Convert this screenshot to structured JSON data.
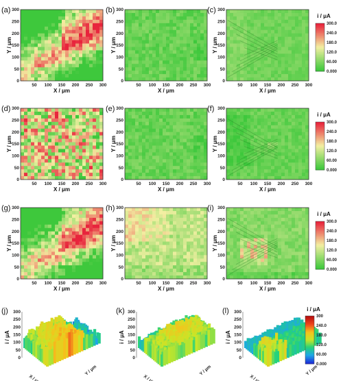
{
  "chart_data": [
    {
      "panel": "(a)",
      "type": "heatmap",
      "xlabel": "X / μm",
      "ylabel": "Y / μm",
      "xticks": [
        "50",
        "100",
        "150",
        "200",
        "250",
        "300"
      ],
      "yticks": [
        "0",
        "50",
        "100",
        "150",
        "200",
        "250",
        "300"
      ],
      "x_range": [
        0,
        300
      ],
      "y_range": [
        0,
        300
      ],
      "unit": "i / μA",
      "level": "high",
      "pattern": "diagonal-band"
    },
    {
      "panel": "(b)",
      "type": "heatmap",
      "xlabel": "X / μm",
      "ylabel": "Y / μm",
      "xticks": [
        "50",
        "100",
        "150",
        "200",
        "250",
        "300"
      ],
      "yticks": [
        "0",
        "50",
        "100",
        "150",
        "200",
        "250",
        "300"
      ],
      "x_range": [
        0,
        300
      ],
      "y_range": [
        0,
        300
      ],
      "unit": "i / μA",
      "level": "low",
      "pattern": "uniform"
    },
    {
      "panel": "(c)",
      "type": "heatmap",
      "xlabel": "X / μm",
      "ylabel": "Y / μm",
      "xticks": [
        "50",
        "100",
        "150",
        "200",
        "250",
        "300"
      ],
      "yticks": [
        "0",
        "50",
        "100",
        "150",
        "200",
        "250",
        "300"
      ],
      "x_range": [
        0,
        300
      ],
      "y_range": [
        0,
        300
      ],
      "unit": "i / μA",
      "level": "low",
      "pattern": "scratch",
      "colorbar": {
        "title": "i / μA",
        "ticks": [
          "300.0",
          "240.0",
          "180.0",
          "120.0",
          "60.00",
          "0.000"
        ],
        "range": [
          0,
          300
        ]
      }
    },
    {
      "panel": "(d)",
      "type": "heatmap",
      "xlabel": "X / μm",
      "ylabel": "Y / μm",
      "xticks": [
        "50",
        "100",
        "150",
        "200",
        "250",
        "300"
      ],
      "yticks": [
        "0",
        "50",
        "100",
        "150",
        "200",
        "250",
        "300"
      ],
      "x_range": [
        0,
        300
      ],
      "y_range": [
        0,
        300
      ],
      "unit": "i / μA",
      "level": "high",
      "pattern": "spotted"
    },
    {
      "panel": "(e)",
      "type": "heatmap",
      "xlabel": "X / μm",
      "ylabel": "Y / μm",
      "xticks": [
        "50",
        "100",
        "150",
        "200",
        "250",
        "300"
      ],
      "yticks": [
        "0",
        "50",
        "100",
        "150",
        "200",
        "250",
        "300"
      ],
      "x_range": [
        0,
        300
      ],
      "y_range": [
        0,
        300
      ],
      "unit": "i / μA",
      "level": "low",
      "pattern": "uniform"
    },
    {
      "panel": "(f)",
      "type": "heatmap",
      "xlabel": "X / μm",
      "ylabel": "Y / μm",
      "xticks": [
        "50",
        "100",
        "150",
        "200",
        "250",
        "300"
      ],
      "yticks": [
        "0",
        "50",
        "100",
        "150",
        "200",
        "250",
        "300"
      ],
      "x_range": [
        0,
        300
      ],
      "y_range": [
        0,
        300
      ],
      "unit": "i / μA",
      "level": "low",
      "pattern": "scratch-dark",
      "colorbar": {
        "title": "i / μA",
        "ticks": [
          "300.0",
          "240.0",
          "180.0",
          "120.0",
          "60.00",
          "0.000"
        ],
        "range": [
          0,
          300
        ]
      }
    },
    {
      "panel": "(g)",
      "type": "heatmap",
      "xlabel": "X / μm",
      "ylabel": "Y / μm",
      "xticks": [
        "50",
        "100",
        "150",
        "200",
        "250",
        "300"
      ],
      "yticks": [
        "0",
        "50",
        "100",
        "150",
        "200",
        "250",
        "300"
      ],
      "x_range": [
        0,
        300
      ],
      "y_range": [
        0,
        300
      ],
      "unit": "i / μA",
      "level": "high",
      "pattern": "diagonal-band"
    },
    {
      "panel": "(h)",
      "type": "heatmap",
      "xlabel": "X / μm",
      "ylabel": "Y / μm",
      "xticks": [
        "50",
        "100",
        "150",
        "200",
        "250",
        "300"
      ],
      "yticks": [
        "0",
        "50",
        "100",
        "150",
        "200",
        "250",
        "300"
      ],
      "x_range": [
        0,
        300
      ],
      "y_range": [
        0,
        300
      ],
      "unit": "i / μA",
      "level": "medium",
      "pattern": "top-left-patch"
    },
    {
      "panel": "(i)",
      "type": "heatmap",
      "xlabel": "X / μm",
      "ylabel": "Y / μm",
      "xticks": [
        "50",
        "100",
        "150",
        "200",
        "250",
        "300"
      ],
      "yticks": [
        "0",
        "50",
        "100",
        "150",
        "200",
        "250",
        "300"
      ],
      "x_range": [
        0,
        300
      ],
      "y_range": [
        0,
        300
      ],
      "unit": "i / μA",
      "level": "low-medium",
      "pattern": "scratch-spots",
      "colorbar": {
        "title": "i / μA",
        "ticks": [
          "300.0",
          "240.0",
          "180.0",
          "120.0",
          "60.00",
          "0.000"
        ],
        "range": [
          0,
          300
        ]
      }
    },
    {
      "panel": "(j)",
      "type": "surface3d",
      "zlabel": "i / μA",
      "zticks": [
        "0",
        "50",
        "100",
        "150",
        "200",
        "250",
        "300"
      ],
      "xlabel": "X / μm",
      "ylabel": "Y / μm",
      "z_range": [
        0,
        300
      ],
      "level": "high"
    },
    {
      "panel": "(k)",
      "type": "surface3d",
      "zlabel": "i / μA",
      "zticks": [
        "0",
        "50",
        "100",
        "150",
        "200",
        "250",
        "300"
      ],
      "xlabel": "X / μm",
      "ylabel": "Y / μm",
      "z_range": [
        0,
        300
      ],
      "level": "medium"
    },
    {
      "panel": "(l)",
      "type": "surface3d",
      "zlabel": "i / μA",
      "zticks": [
        "0",
        "50",
        "100",
        "150",
        "200",
        "250",
        "300"
      ],
      "xlabel": "X / μm",
      "ylabel": "Y / μm",
      "z_range": [
        0,
        300
      ],
      "level": "low-medium",
      "colorbar": {
        "title": "i / μA",
        "ticks": [
          "300",
          "240.0",
          "180.0",
          "120.0",
          "60.00",
          "0.000"
        ],
        "range": [
          0,
          300
        ]
      }
    }
  ],
  "colors": {
    "green": "#3ec83c",
    "yellow": "#f3efa2",
    "red": "#e8243c",
    "rainbow": [
      "#1c2fd8",
      "#1ea7e8",
      "#24d27c",
      "#c8e628",
      "#f6c21c",
      "#f0461c",
      "#b81010"
    ]
  }
}
